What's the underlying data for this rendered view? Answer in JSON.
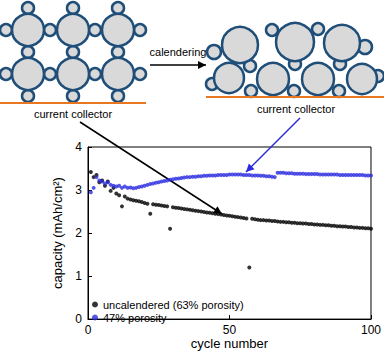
{
  "diagram": {
    "left_collector_label": "current collector",
    "right_collector_label": "current collector",
    "process_label": "calendering"
  },
  "chart_data": {
    "type": "scatter",
    "xlabel": "cycle number",
    "ylabel": "capacity (mAh/cm²)",
    "xlim": [
      0,
      100
    ],
    "xticks": [
      0,
      50,
      100
    ],
    "ylim": [
      0,
      4
    ],
    "yticks": [
      0,
      1,
      2,
      3,
      4
    ],
    "grid": false,
    "legend": "lower left",
    "marker": "circle",
    "x": [
      1,
      2,
      3,
      4,
      5,
      6,
      7,
      8,
      9,
      10,
      11,
      12,
      13,
      14,
      15,
      16,
      17,
      18,
      19,
      20,
      21,
      22,
      23,
      24,
      25,
      26,
      27,
      28,
      29,
      30,
      31,
      32,
      33,
      34,
      35,
      36,
      37,
      38,
      39,
      40,
      41,
      42,
      43,
      44,
      45,
      46,
      47,
      48,
      49,
      50,
      51,
      52,
      53,
      54,
      55,
      56,
      57,
      58,
      59,
      60,
      61,
      62,
      63,
      64,
      65,
      66,
      67,
      68,
      69,
      70,
      71,
      72,
      73,
      74,
      75,
      76,
      77,
      78,
      79,
      80,
      81,
      82,
      83,
      84,
      85,
      86,
      87,
      88,
      89,
      90,
      91,
      92,
      93,
      94,
      95,
      96,
      97,
      98,
      99,
      100
    ],
    "series": [
      {
        "name": "uncalendered (63% porosity)",
        "color": "#000000",
        "values": [
          3.42,
          3.3,
          3.35,
          3.18,
          3.22,
          3.1,
          3.2,
          2.98,
          3.05,
          2.92,
          2.88,
          2.62,
          2.85,
          2.8,
          2.78,
          2.76,
          2.75,
          2.74,
          2.72,
          2.7,
          2.68,
          2.45,
          2.67,
          2.66,
          2.65,
          2.64,
          2.63,
          2.62,
          2.1,
          2.6,
          2.59,
          2.58,
          2.57,
          2.56,
          2.55,
          2.54,
          2.53,
          2.52,
          2.51,
          2.5,
          2.49,
          2.48,
          2.47,
          2.46,
          2.45,
          2.44,
          2.43,
          2.42,
          2.41,
          2.4,
          2.39,
          2.38,
          2.37,
          2.36,
          2.35,
          2.34,
          1.2,
          2.33,
          2.32,
          2.31,
          2.3,
          2.3,
          2.29,
          2.29,
          2.28,
          2.28,
          2.27,
          2.26,
          2.26,
          2.25,
          2.25,
          2.24,
          2.24,
          2.23,
          2.23,
          2.22,
          2.22,
          2.21,
          2.21,
          2.2,
          2.2,
          2.19,
          2.19,
          2.18,
          2.18,
          2.17,
          2.17,
          2.16,
          2.16,
          2.15,
          2.15,
          2.14,
          2.14,
          2.13,
          2.13,
          2.12,
          2.12,
          2.11,
          2.11,
          2.1
        ]
      },
      {
        "name": "47% porosity",
        "color": "#2a2ae0",
        "values": [
          2.95,
          3.05,
          3.3,
          3.22,
          3.2,
          3.15,
          3.18,
          3.12,
          3.1,
          3.08,
          3.1,
          3.05,
          3.08,
          3.05,
          3.06,
          3.04,
          3.05,
          3.07,
          3.08,
          3.1,
          3.12,
          3.14,
          3.15,
          3.17,
          3.18,
          3.2,
          3.21,
          3.22,
          3.24,
          3.25,
          3.26,
          3.27,
          3.28,
          3.29,
          3.3,
          3.3,
          3.31,
          3.31,
          3.32,
          3.32,
          3.33,
          3.33,
          3.34,
          3.34,
          3.34,
          3.35,
          3.35,
          3.35,
          3.35,
          3.36,
          3.36,
          3.36,
          3.36,
          3.36,
          3.35,
          3.35,
          3.35,
          3.34,
          3.34,
          3.34,
          3.33,
          3.33,
          3.32,
          3.32,
          3.31,
          3.3,
          3.4,
          3.4,
          3.4,
          3.39,
          3.39,
          3.39,
          3.38,
          3.38,
          3.38,
          3.38,
          3.37,
          3.37,
          3.37,
          3.37,
          3.37,
          3.36,
          3.36,
          3.36,
          3.36,
          3.36,
          3.36,
          3.36,
          3.35,
          3.35,
          3.35,
          3.35,
          3.35,
          3.35,
          3.35,
          3.35,
          3.35,
          3.34,
          3.34,
          3.34
        ]
      }
    ]
  }
}
